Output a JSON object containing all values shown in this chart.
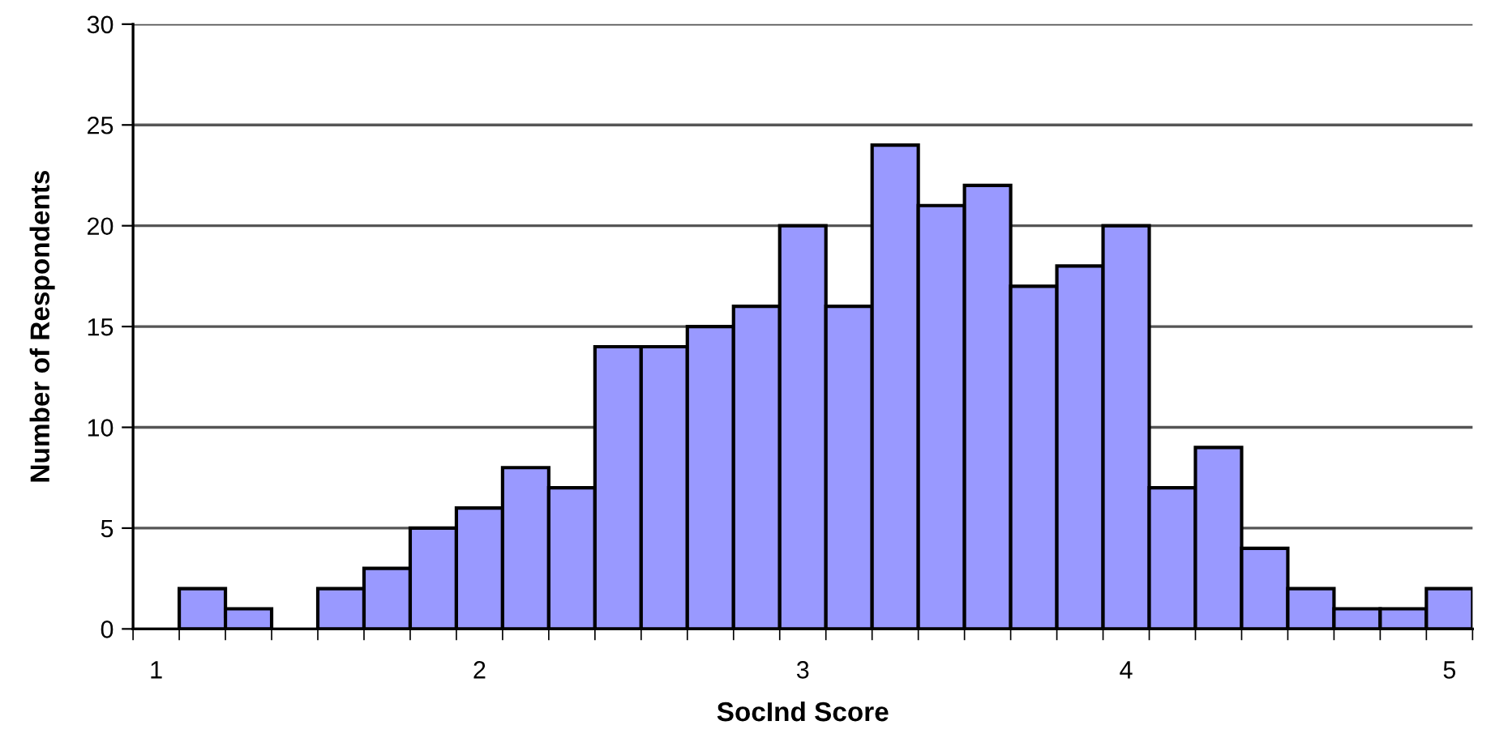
{
  "chart_data": {
    "type": "bar",
    "xlabel": "SocInd Score",
    "ylabel": "Number of Respondents",
    "categories": [
      "1",
      null,
      null,
      null,
      null,
      null,
      null,
      "2",
      null,
      null,
      null,
      null,
      null,
      null,
      "3",
      null,
      null,
      null,
      null,
      null,
      null,
      "4",
      null,
      null,
      null,
      null,
      null,
      null,
      "5"
    ],
    "values": [
      null,
      2,
      1,
      null,
      2,
      3,
      5,
      6,
      8,
      7,
      14,
      14,
      15,
      16,
      20,
      16,
      24,
      21,
      22,
      17,
      18,
      20,
      7,
      9,
      4,
      2,
      1,
      1,
      2
    ],
    "color": "#9999ff",
    "ylim": [
      0,
      30
    ],
    "yticks": [
      0,
      5,
      10,
      15,
      20,
      25,
      30
    ],
    "grid": "y",
    "legend": false
  }
}
